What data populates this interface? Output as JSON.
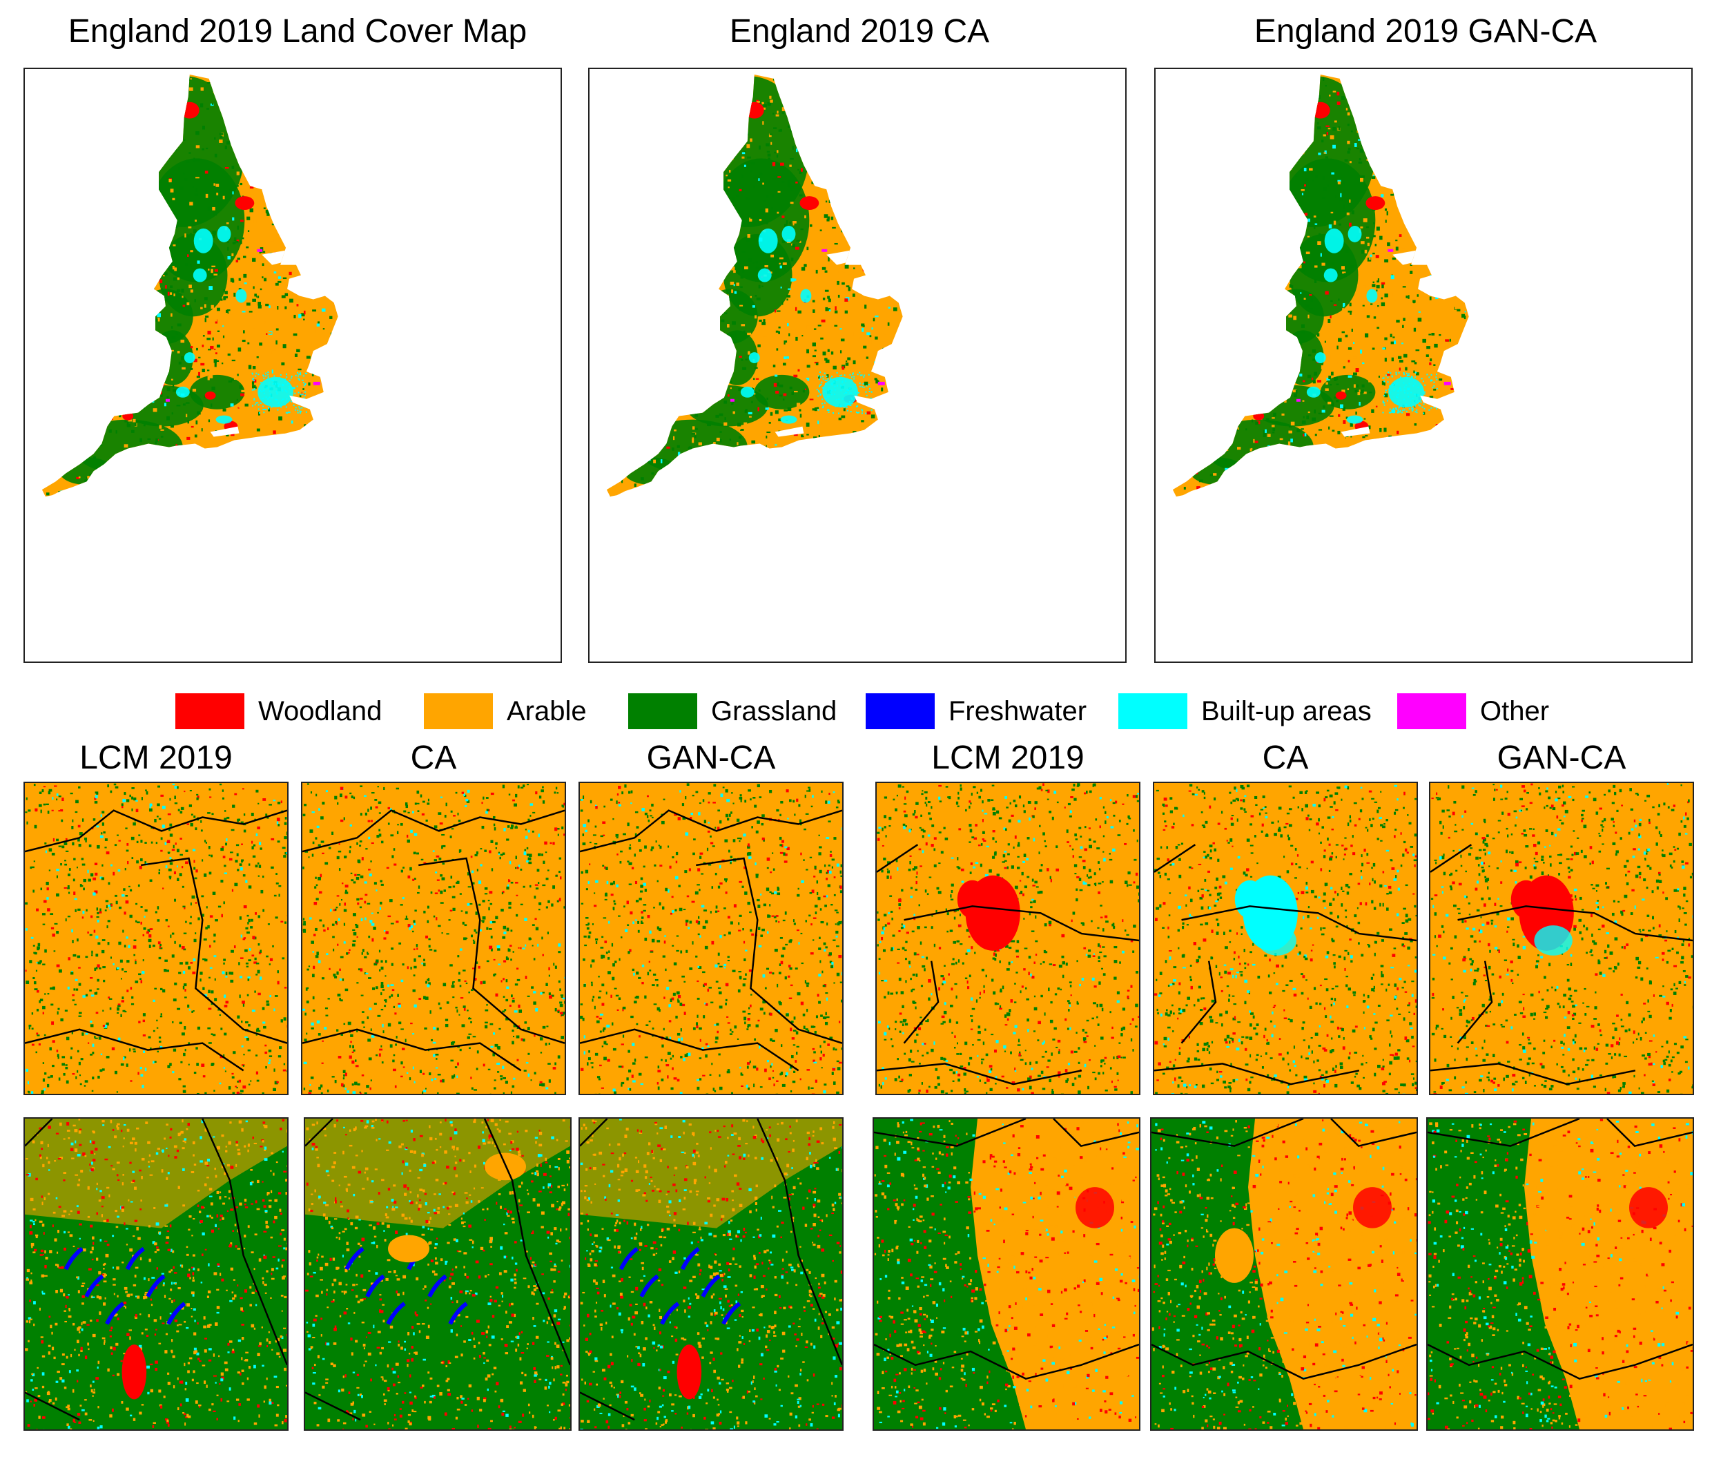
{
  "panels": [
    {
      "title": "England 2019 Land Cover Map",
      "variant": "lcm"
    },
    {
      "title": "England 2019 CA",
      "variant": "ca"
    },
    {
      "title": "England 2019 GAN-CA",
      "variant": "gan"
    }
  ],
  "legend": [
    {
      "label": "Woodland",
      "color": "#ff0000"
    },
    {
      "label": "Arable",
      "color": "#ffa500"
    },
    {
      "label": "Grassland",
      "color": "#008000"
    },
    {
      "label": "Freshwater",
      "color": "#0000ff"
    },
    {
      "label": "Built-up areas",
      "color": "#00ffff"
    },
    {
      "label": "Other",
      "color": "#ff00ff"
    }
  ],
  "comparison_titles": {
    "left": [
      "LCM 2019",
      "CA",
      "GAN-CA"
    ],
    "right": [
      "LCM 2019",
      "CA",
      "GAN-CA"
    ]
  },
  "colors": {
    "woodland": "#ff0000",
    "arable": "#ffa500",
    "grassland": "#008000",
    "freshwater": "#0000ff",
    "builtup": "#00ffff",
    "other": "#ff00ff",
    "boundary": "#000000"
  }
}
